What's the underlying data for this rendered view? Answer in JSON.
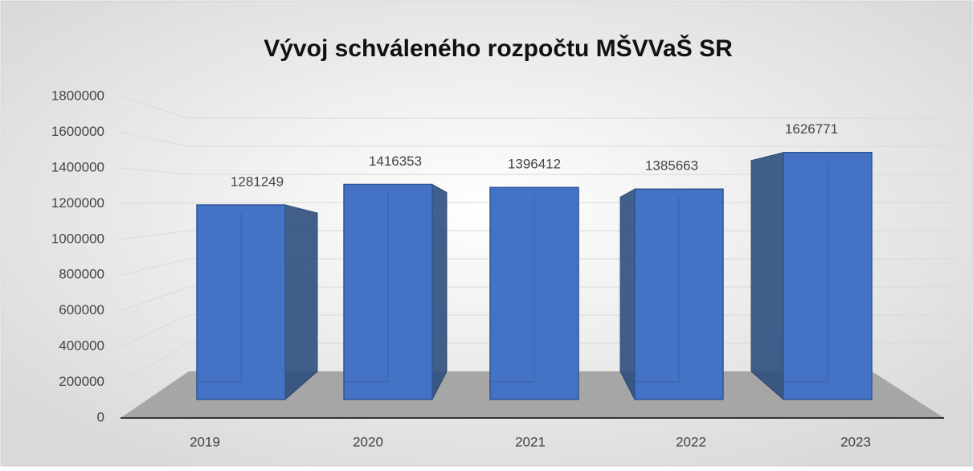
{
  "chart_data": {
    "type": "bar",
    "title": "Vývoj schváleného rozpočtu MŠVVaŠ  SR",
    "categories": [
      "2019",
      "2020",
      "2021",
      "2022",
      "2023"
    ],
    "values": [
      1281249,
      1416353,
      1396412,
      1385663,
      1626771
    ],
    "color": "#4472c4",
    "ylim": [
      0,
      1800000
    ],
    "yticks": [
      0,
      200000,
      400000,
      600000,
      800000,
      1000000,
      1200000,
      1400000,
      1600000,
      1800000
    ],
    "grid": true
  }
}
